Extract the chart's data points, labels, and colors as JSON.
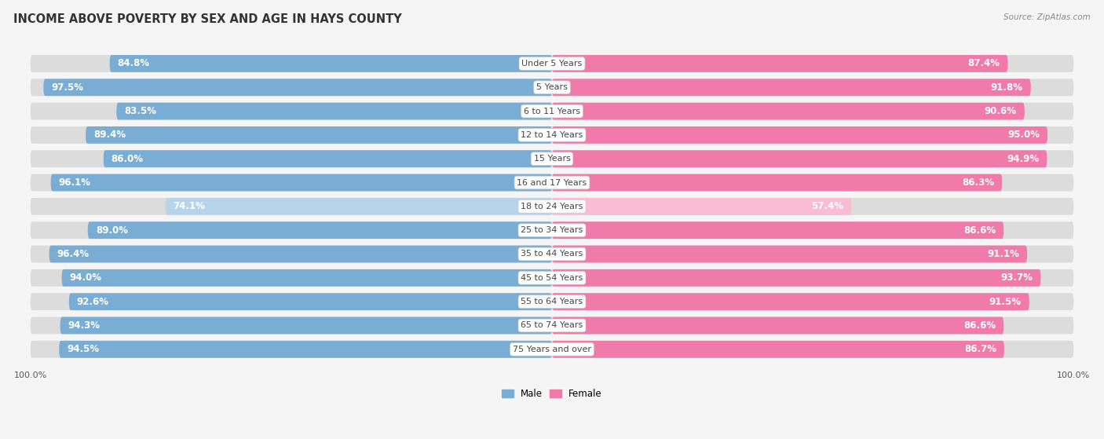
{
  "title": "INCOME ABOVE POVERTY BY SEX AND AGE IN HAYS COUNTY",
  "source": "Source: ZipAtlas.com",
  "categories": [
    "Under 5 Years",
    "5 Years",
    "6 to 11 Years",
    "12 to 14 Years",
    "15 Years",
    "16 and 17 Years",
    "18 to 24 Years",
    "25 to 34 Years",
    "35 to 44 Years",
    "45 to 54 Years",
    "55 to 64 Years",
    "65 to 74 Years",
    "75 Years and over"
  ],
  "male_values": [
    84.8,
    97.5,
    83.5,
    89.4,
    86.0,
    96.1,
    74.1,
    89.0,
    96.4,
    94.0,
    92.6,
    94.3,
    94.5
  ],
  "female_values": [
    87.4,
    91.8,
    90.6,
    95.0,
    94.9,
    86.3,
    57.4,
    86.6,
    91.1,
    93.7,
    91.5,
    86.6,
    86.7
  ],
  "male_color": "#7aadd4",
  "female_color": "#f07aaa",
  "male_color_light": "#b8d4ea",
  "female_color_light": "#f9bcd4",
  "male_label": "Male",
  "female_label": "Female",
  "background_color": "#f5f5f5",
  "bar_bg_color": "#dcdcdc",
  "row_bg_color": "#ebebeb",
  "title_fontsize": 10.5,
  "label_fontsize": 8.0,
  "value_fontsize": 8.5,
  "source_fontsize": 7.5,
  "max_val": 100.0
}
